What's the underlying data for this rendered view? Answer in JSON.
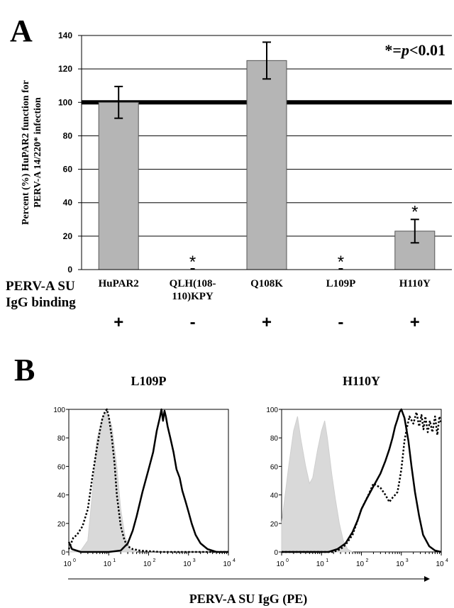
{
  "panels": {
    "a_label": "A",
    "b_label": "B"
  },
  "chart_data": [
    {
      "type": "bar",
      "panel": "A",
      "categories": [
        "HuPAR2",
        "QLH(108-110)KPY",
        "Q108K",
        "L109P",
        "H110Y"
      ],
      "category_lines": [
        [
          "HuPAR2"
        ],
        [
          "QLH(108-",
          "110)KPY"
        ],
        [
          "Q108K"
        ],
        [
          "L109P"
        ],
        [
          "H110Y"
        ]
      ],
      "values": [
        100,
        0,
        125,
        0,
        23
      ],
      "error": [
        9.5,
        0,
        11,
        0,
        7
      ],
      "significance": [
        "",
        "*",
        "",
        "*",
        "*"
      ],
      "ylabel_lines": [
        "Percent (%) HuPAR2 function for",
        "PERV-A 14/220* infection"
      ],
      "ylim": [
        0,
        140
      ],
      "yticks": [
        0,
        20,
        40,
        60,
        80,
        100,
        120,
        140
      ],
      "reference_line": 100,
      "grid": true,
      "annotation": "*=p<0.01",
      "binding_row": {
        "label_lines": [
          "PERV-A SU",
          "IgG binding"
        ],
        "values": [
          "+",
          "-",
          "+",
          "-",
          "+"
        ]
      },
      "colors": {
        "bar": "#b5b5b5"
      }
    },
    {
      "type": "line",
      "panel": "B",
      "title": "L109P",
      "xscale": "log",
      "xlim": [
        1,
        10000
      ],
      "ylim": [
        0,
        100
      ],
      "yticks": [
        0,
        20,
        40,
        60,
        80,
        100
      ],
      "series": [
        {
          "style": "filled-gray",
          "points": [
            [
              1,
              0
            ],
            [
              2,
              1
            ],
            [
              3,
              8
            ],
            [
              4,
              45
            ],
            [
              5,
              78
            ],
            [
              7,
              95
            ],
            [
              9,
              99
            ],
            [
              12,
              88
            ],
            [
              16,
              60
            ],
            [
              20,
              30
            ],
            [
              26,
              10
            ],
            [
              35,
              2
            ],
            [
              50,
              0
            ]
          ]
        },
        {
          "style": "dotted",
          "points": [
            [
              1,
              2
            ],
            [
              1.3,
              10
            ],
            [
              1.6,
              12
            ],
            [
              2.2,
              18
            ],
            [
              3,
              30
            ],
            [
              4,
              55
            ],
            [
              5,
              72
            ],
            [
              6,
              85
            ],
            [
              7,
              94
            ],
            [
              8,
              98
            ],
            [
              9,
              100
            ],
            [
              10,
              95
            ],
            [
              12,
              80
            ],
            [
              14,
              62
            ],
            [
              16,
              40
            ],
            [
              20,
              18
            ],
            [
              25,
              8
            ],
            [
              30,
              4
            ],
            [
              40,
              2
            ],
            [
              60,
              1
            ],
            [
              200,
              0
            ],
            [
              10000,
              0
            ]
          ]
        },
        {
          "style": "solid",
          "points": [
            [
              1,
              7
            ],
            [
              1.2,
              2
            ],
            [
              2,
              0
            ],
            [
              10,
              0
            ],
            [
              20,
              1
            ],
            [
              30,
              6
            ],
            [
              40,
              15
            ],
            [
              50,
              25
            ],
            [
              70,
              42
            ],
            [
              100,
              58
            ],
            [
              130,
              70
            ],
            [
              160,
              85
            ],
            [
              190,
              94
            ],
            [
              210,
              100
            ],
            [
              230,
              92
            ],
            [
              250,
              99
            ],
            [
              270,
              95
            ],
            [
              300,
              88
            ],
            [
              350,
              80
            ],
            [
              420,
              70
            ],
            [
              500,
              58
            ],
            [
              600,
              52
            ],
            [
              700,
              43
            ],
            [
              850,
              35
            ],
            [
              1000,
              28
            ],
            [
              1200,
              20
            ],
            [
              1500,
              12
            ],
            [
              2000,
              6
            ],
            [
              3000,
              2
            ],
            [
              5000,
              0
            ],
            [
              10000,
              0
            ]
          ]
        }
      ],
      "tick_labels": {
        "x": [
          "10",
          "10",
          "10",
          "10",
          "10"
        ],
        "x_exp": [
          "0",
          "1",
          "2",
          "3",
          "4"
        ]
      }
    },
    {
      "type": "line",
      "panel": "B",
      "title": "H110Y",
      "xscale": "log",
      "xlim": [
        1,
        10000
      ],
      "ylim": [
        0,
        100
      ],
      "yticks": [
        0,
        20,
        40,
        60,
        80,
        100
      ],
      "series": [
        {
          "style": "filled-gray",
          "points": [
            [
              1,
              20
            ],
            [
              1.5,
              60
            ],
            [
              2,
              85
            ],
            [
              2.5,
              95
            ],
            [
              3,
              80
            ],
            [
              4,
              60
            ],
            [
              5,
              48
            ],
            [
              6,
              52
            ],
            [
              8,
              72
            ],
            [
              10,
              85
            ],
            [
              12,
              92
            ],
            [
              14,
              80
            ],
            [
              18,
              55
            ],
            [
              22,
              38
            ],
            [
              28,
              20
            ],
            [
              35,
              8
            ],
            [
              45,
              2
            ],
            [
              60,
              0
            ]
          ]
        },
        {
          "style": "dotted",
          "points": [
            [
              1,
              0
            ],
            [
              20,
              0
            ],
            [
              30,
              2
            ],
            [
              40,
              5
            ],
            [
              60,
              12
            ],
            [
              80,
              22
            ],
            [
              100,
              30
            ],
            [
              150,
              40
            ],
            [
              200,
              48
            ],
            [
              300,
              45
            ],
            [
              400,
              40
            ],
            [
              500,
              35
            ],
            [
              600,
              38
            ],
            [
              700,
              40
            ],
            [
              800,
              42
            ],
            [
              900,
              50
            ],
            [
              1000,
              58
            ],
            [
              1200,
              78
            ],
            [
              1400,
              88
            ],
            [
              1600,
              95
            ],
            [
              2000,
              90
            ],
            [
              2400,
              98
            ],
            [
              2800,
              88
            ],
            [
              3200,
              96
            ],
            [
              3600,
              86
            ],
            [
              4000,
              95
            ],
            [
              4600,
              84
            ],
            [
              5200,
              92
            ],
            [
              6000,
              84
            ],
            [
              7000,
              95
            ],
            [
              8000,
              82
            ],
            [
              9000,
              95
            ],
            [
              10000,
              90
            ]
          ]
        },
        {
          "style": "solid",
          "points": [
            [
              1,
              0
            ],
            [
              15,
              0
            ],
            [
              25,
              2
            ],
            [
              40,
              6
            ],
            [
              60,
              14
            ],
            [
              80,
              22
            ],
            [
              100,
              30
            ],
            [
              140,
              38
            ],
            [
              200,
              46
            ],
            [
              300,
              55
            ],
            [
              400,
              64
            ],
            [
              500,
              72
            ],
            [
              600,
              80
            ],
            [
              700,
              88
            ],
            [
              800,
              93
            ],
            [
              900,
              98
            ],
            [
              1000,
              100
            ],
            [
              1200,
              94
            ],
            [
              1500,
              78
            ],
            [
              1800,
              60
            ],
            [
              2200,
              42
            ],
            [
              2800,
              25
            ],
            [
              3500,
              12
            ],
            [
              5000,
              4
            ],
            [
              7000,
              1
            ],
            [
              10000,
              0
            ]
          ]
        }
      ],
      "tick_labels": {
        "x": [
          "10",
          "10",
          "10",
          "10",
          "10"
        ],
        "x_exp": [
          "0",
          "1",
          "2",
          "3",
          "4"
        ]
      }
    }
  ],
  "shared_xlabel": "PERV-A SU IgG (PE)"
}
